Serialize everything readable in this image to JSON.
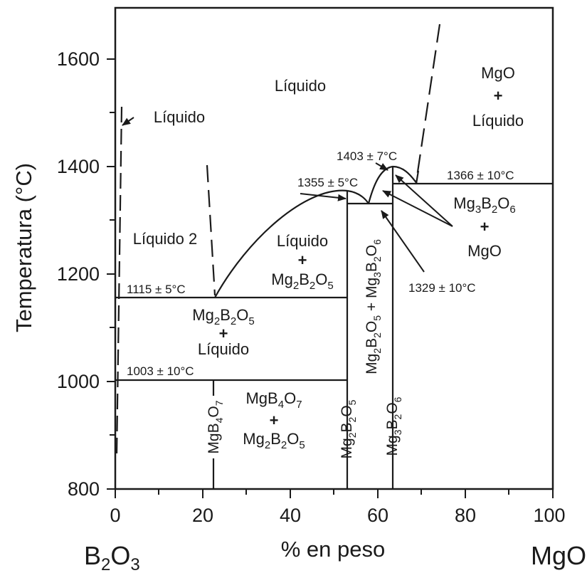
{
  "chart_data": {
    "type": "phase-diagram",
    "xlabel": "% en peso",
    "ylabel": "Temperatura (°C)",
    "xlim": [
      0,
      100
    ],
    "ylim": [
      800,
      1700
    ],
    "x_ticks": [
      "0",
      "20",
      "40",
      "60",
      "80",
      "100"
    ],
    "y_ticks": [
      "800",
      "1000",
      "1200",
      "1400",
      "1600"
    ],
    "left_component": {
      "base": "B",
      "sub1": "2",
      "mid": "O",
      "sub2": "3"
    },
    "right_component": "MgO",
    "liquid_label": "Líquido",
    "liquid2_label": "Líquido 2",
    "liquid_b2o3_label": "Líquido",
    "plus": "+",
    "eutectics": {
      "e1115": "1115 ± 5°C",
      "e1003": "1003 ± 10°C",
      "e1355": "1355 ± 5°C",
      "e1403": "1403 ± 7°C",
      "e1366": "1366 ± 10°C",
      "e1329": "1329 ± 10°C"
    },
    "regions": {
      "mgo_liq": {
        "top": "MgO",
        "bottom": "Líquido"
      },
      "liq_mg2": {
        "top": "Líquido",
        "bottom": "Mg2B2O5"
      },
      "mg2_liq": {
        "top": "Mg2B2O5",
        "bottom": "Líquido"
      },
      "mgb4_mg2": {
        "top": "MgB4O7",
        "bottom": "Mg2B2O5"
      },
      "mg3_mgo": {
        "top": "Mg3B2O6",
        "bottom": "MgO"
      },
      "mg2_mg3": "Mg2B2O5 + Mg3B2O6"
    },
    "compounds": {
      "mgb4o7": "MgB4O7",
      "mg2b2o5": "Mg2B2O5",
      "mg3b2o6": "Mg3B2O6"
    },
    "compound_compositions": {
      "MgB4O7": 22.5,
      "Mg2B2O5": 53.6,
      "Mg3B2O6": 63.4
    },
    "invariant_temperatures": [
      1003,
      1115,
      1329,
      1355,
      1366,
      1403
    ]
  }
}
